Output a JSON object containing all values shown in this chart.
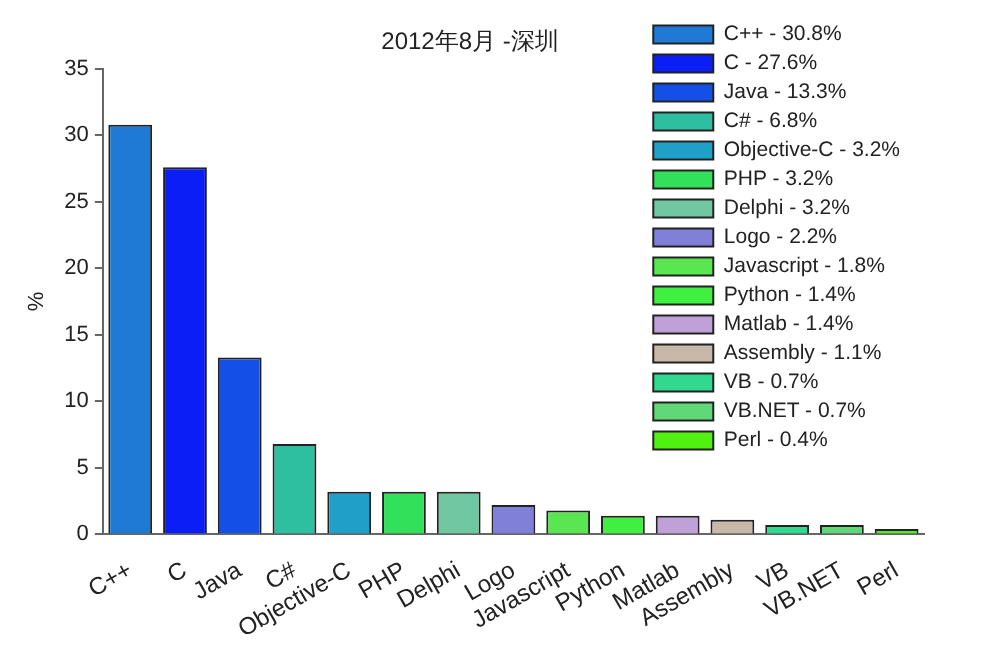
{
  "chart_data": {
    "type": "bar",
    "title": "2012年8月 -深圳",
    "ylabel": "%",
    "categories": [
      "C++",
      "C",
      "Java",
      "C#",
      "Objective-C",
      "PHP",
      "Delphi",
      "Logo",
      "Javascript",
      "Python",
      "Matlab",
      "Assembly",
      "VB",
      "VB.NET",
      "Perl"
    ],
    "series": [
      {
        "name": "C++ - 30.8%",
        "color": "#1f7ad6",
        "values": [
          30.8,
          null,
          null,
          null,
          null,
          null,
          null,
          null,
          null,
          null,
          null,
          null,
          null,
          null,
          null
        ]
      },
      {
        "name": "C - 27.6%",
        "color": "#0a1ef5",
        "values": [
          null,
          27.6,
          null,
          null,
          null,
          null,
          null,
          null,
          null,
          null,
          null,
          null,
          null,
          null,
          null
        ]
      },
      {
        "name": "Java - 13.3%",
        "color": "#1450e6",
        "values": [
          null,
          null,
          13.3,
          null,
          null,
          null,
          null,
          null,
          null,
          null,
          null,
          null,
          null,
          null,
          null
        ]
      },
      {
        "name": "C# - 6.8%",
        "color": "#2ebfa0",
        "values": [
          null,
          null,
          null,
          6.8,
          null,
          null,
          null,
          null,
          null,
          null,
          null,
          null,
          null,
          null,
          null
        ]
      },
      {
        "name": "Objective-C - 3.2%",
        "color": "#1fa0c8",
        "values": [
          null,
          null,
          null,
          null,
          3.2,
          null,
          null,
          null,
          null,
          null,
          null,
          null,
          null,
          null,
          null
        ]
      },
      {
        "name": "PHP - 3.2%",
        "color": "#33e05a",
        "values": [
          null,
          null,
          null,
          null,
          null,
          3.2,
          null,
          null,
          null,
          null,
          null,
          null,
          null,
          null,
          null
        ]
      },
      {
        "name": "Delphi - 3.2%",
        "color": "#70c8a0",
        "values": [
          null,
          null,
          null,
          null,
          null,
          null,
          3.2,
          null,
          null,
          null,
          null,
          null,
          null,
          null,
          null
        ]
      },
      {
        "name": "Logo - 2.2%",
        "color": "#8080d8",
        "values": [
          null,
          null,
          null,
          null,
          null,
          null,
          null,
          2.2,
          null,
          null,
          null,
          null,
          null,
          null,
          null
        ]
      },
      {
        "name": "Javascript - 1.8%",
        "color": "#5ae650",
        "values": [
          null,
          null,
          null,
          null,
          null,
          null,
          null,
          null,
          1.8,
          null,
          null,
          null,
          null,
          null,
          null
        ]
      },
      {
        "name": "Python - 1.4%",
        "color": "#40f040",
        "values": [
          null,
          null,
          null,
          null,
          null,
          null,
          null,
          null,
          null,
          1.4,
          null,
          null,
          null,
          null,
          null
        ]
      },
      {
        "name": "Matlab - 1.4%",
        "color": "#c0a0d8",
        "values": [
          null,
          null,
          null,
          null,
          null,
          null,
          null,
          null,
          null,
          null,
          1.4,
          null,
          null,
          null,
          null
        ]
      },
      {
        "name": "Assembly - 1.1%",
        "color": "#c8b8a8",
        "values": [
          null,
          null,
          null,
          null,
          null,
          null,
          null,
          null,
          null,
          null,
          null,
          1.1,
          null,
          null,
          null
        ]
      },
      {
        "name": "VB - 0.7%",
        "color": "#30d890",
        "values": [
          null,
          null,
          null,
          null,
          null,
          null,
          null,
          null,
          null,
          null,
          null,
          null,
          0.7,
          null,
          null
        ]
      },
      {
        "name": "VB.NET - 0.7%",
        "color": "#60d878",
        "values": [
          null,
          null,
          null,
          null,
          null,
          null,
          null,
          null,
          null,
          null,
          null,
          null,
          null,
          0.7,
          null
        ]
      },
      {
        "name": "Perl - 0.4%",
        "color": "#50f010",
        "values": [
          null,
          null,
          null,
          null,
          null,
          null,
          null,
          null,
          null,
          null,
          null,
          null,
          null,
          null,
          0.4
        ]
      }
    ],
    "ylim": [
      0,
      35
    ],
    "yticks": [
      0,
      5,
      10,
      15,
      20,
      25,
      30,
      35
    ],
    "grid": false,
    "legend": "top right"
  }
}
